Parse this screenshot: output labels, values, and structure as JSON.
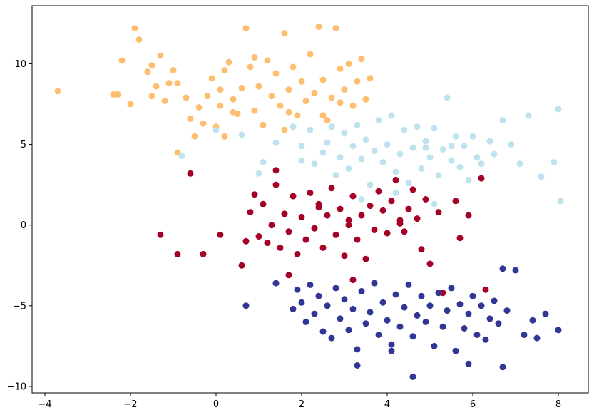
{
  "chart_data": {
    "type": "scatter",
    "title": "",
    "xlabel": "",
    "ylabel": "",
    "xlim": [
      -4.3,
      8.7
    ],
    "ylim": [
      -10.4,
      13.6
    ],
    "grid": false,
    "legend": "none",
    "x_ticks": [
      -4,
      -2,
      0,
      2,
      4,
      6,
      8
    ],
    "y_ticks": [
      -10,
      -5,
      0,
      5,
      10
    ],
    "series": [
      {
        "color": "#fdbf6f",
        "points": [
          [
            -3.7,
            8.3
          ],
          [
            -2.4,
            8.1
          ],
          [
            -2.3,
            8.1
          ],
          [
            -2.2,
            10.2
          ],
          [
            -2.0,
            7.5
          ],
          [
            -1.9,
            12.2
          ],
          [
            -1.8,
            11.5
          ],
          [
            -1.6,
            9.5
          ],
          [
            -1.5,
            8.0
          ],
          [
            -1.4,
            8.6
          ],
          [
            -1.3,
            10.5
          ],
          [
            -1.2,
            7.7
          ],
          [
            -1.0,
            9.6
          ],
          [
            -0.9,
            8.8
          ],
          [
            -0.7,
            7.9
          ],
          [
            -0.6,
            6.6
          ],
          [
            -0.5,
            5.5
          ],
          [
            -0.4,
            7.3
          ],
          [
            -0.3,
            6.3
          ],
          [
            -0.2,
            8.0
          ],
          [
            -0.1,
            9.1
          ],
          [
            0.0,
            6.1
          ],
          [
            0.1,
            7.4
          ],
          [
            0.2,
            9.6
          ],
          [
            0.3,
            10.1
          ],
          [
            0.4,
            7.8
          ],
          [
            0.5,
            6.9
          ],
          [
            0.6,
            8.5
          ],
          [
            0.7,
            12.2
          ],
          [
            0.8,
            9.8
          ],
          [
            0.9,
            7.1
          ],
          [
            1.0,
            8.6
          ],
          [
            1.1,
            6.2
          ],
          [
            1.2,
            10.2
          ],
          [
            1.3,
            8.0
          ],
          [
            1.4,
            9.4
          ],
          [
            1.5,
            7.4
          ],
          [
            1.6,
            11.9
          ],
          [
            1.7,
            8.4
          ],
          [
            1.8,
            9.8
          ],
          [
            1.9,
            6.8
          ],
          [
            2.0,
            8.9
          ],
          [
            2.1,
            7.7
          ],
          [
            2.2,
            10.6
          ],
          [
            2.3,
            8.2
          ],
          [
            2.4,
            12.3
          ],
          [
            2.5,
            9.0
          ],
          [
            2.6,
            6.5
          ],
          [
            2.7,
            7.9
          ],
          [
            2.8,
            12.2
          ],
          [
            2.9,
            9.7
          ],
          [
            3.0,
            8.4
          ],
          [
            3.1,
            10.0
          ],
          [
            3.2,
            7.4
          ],
          [
            3.3,
            8.9
          ],
          [
            3.4,
            10.3
          ],
          [
            3.5,
            7.8
          ],
          [
            3.6,
            9.1
          ],
          [
            0.2,
            5.5
          ],
          [
            -0.9,
            4.5
          ],
          [
            -1.5,
            9.9
          ],
          [
            0.4,
            7.0
          ],
          [
            1.6,
            5.9
          ],
          [
            2.5,
            6.8
          ],
          [
            -1.1,
            8.8
          ],
          [
            0.9,
            10.4
          ],
          [
            2.9,
            7.6
          ],
          [
            0.1,
            8.4
          ],
          [
            1.7,
            7.0
          ]
        ]
      },
      {
        "color": "#bfe3ee",
        "points": [
          [
            -0.8,
            4.3
          ],
          [
            0.0,
            5.9
          ],
          [
            0.6,
            5.6
          ],
          [
            1.0,
            3.2
          ],
          [
            1.4,
            5.1
          ],
          [
            1.8,
            6.1
          ],
          [
            2.0,
            4.9
          ],
          [
            2.2,
            5.9
          ],
          [
            2.3,
            3.8
          ],
          [
            2.5,
            4.5
          ],
          [
            2.6,
            5.1
          ],
          [
            2.7,
            6.1
          ],
          [
            2.8,
            3.1
          ],
          [
            2.9,
            4.2
          ],
          [
            3.0,
            5.7
          ],
          [
            3.1,
            3.5
          ],
          [
            3.2,
            4.9
          ],
          [
            3.3,
            6.2
          ],
          [
            3.4,
            4.1
          ],
          [
            3.5,
            5.3
          ],
          [
            3.6,
            2.5
          ],
          [
            3.7,
            4.6
          ],
          [
            3.8,
            6.5
          ],
          [
            3.9,
            3.9
          ],
          [
            4.0,
            5.0
          ],
          [
            4.1,
            6.8
          ],
          [
            4.2,
            3.3
          ],
          [
            4.3,
            4.4
          ],
          [
            4.4,
            5.9
          ],
          [
            4.5,
            2.6
          ],
          [
            4.6,
            4.8
          ],
          [
            4.7,
            6.1
          ],
          [
            4.8,
            3.5
          ],
          [
            4.9,
            5.2
          ],
          [
            5.0,
            4.2
          ],
          [
            5.1,
            6.0
          ],
          [
            5.2,
            3.1
          ],
          [
            5.3,
            4.7
          ],
          [
            5.4,
            7.9
          ],
          [
            5.5,
            4.0
          ],
          [
            5.6,
            5.5
          ],
          [
            5.7,
            3.6
          ],
          [
            5.8,
            4.9
          ],
          [
            5.9,
            2.8
          ],
          [
            6.0,
            5.5
          ],
          [
            6.1,
            4.2
          ],
          [
            6.2,
            3.8
          ],
          [
            6.4,
            5.2
          ],
          [
            6.5,
            4.4
          ],
          [
            6.7,
            6.5
          ],
          [
            6.9,
            5.0
          ],
          [
            7.1,
            3.8
          ],
          [
            7.3,
            6.8
          ],
          [
            7.6,
            3.0
          ],
          [
            7.9,
            3.9
          ],
          [
            8.0,
            7.2
          ],
          [
            8.05,
            1.5
          ],
          [
            4.2,
            2.0
          ],
          [
            5.1,
            1.3
          ],
          [
            3.4,
            1.6
          ],
          [
            1.1,
            3.9
          ],
          [
            2.0,
            4.0
          ],
          [
            4.9,
            4.8
          ],
          [
            5.5,
            4.9
          ]
        ]
      },
      {
        "color": "#a50026",
        "points": [
          [
            -1.3,
            -0.6
          ],
          [
            -0.9,
            -1.8
          ],
          [
            -0.3,
            -1.8
          ],
          [
            -0.6,
            3.2
          ],
          [
            0.1,
            -0.6
          ],
          [
            0.7,
            -1.0
          ],
          [
            0.6,
            -2.5
          ],
          [
            0.8,
            0.8
          ],
          [
            0.9,
            1.9
          ],
          [
            1.0,
            -0.7
          ],
          [
            1.1,
            1.3
          ],
          [
            1.2,
            -1.1
          ],
          [
            1.3,
            0.0
          ],
          [
            1.4,
            2.5
          ],
          [
            1.5,
            -1.4
          ],
          [
            1.6,
            0.7
          ],
          [
            1.7,
            -0.4
          ],
          [
            1.8,
            1.8
          ],
          [
            1.9,
            -1.8
          ],
          [
            2.0,
            0.5
          ],
          [
            2.1,
            -0.9
          ],
          [
            2.2,
            2.0
          ],
          [
            2.3,
            -0.2
          ],
          [
            2.4,
            1.3
          ],
          [
            2.5,
            -1.4
          ],
          [
            2.6,
            0.6
          ],
          [
            2.7,
            2.3
          ],
          [
            2.8,
            -0.6
          ],
          [
            2.9,
            1.0
          ],
          [
            3.0,
            -1.9
          ],
          [
            3.1,
            0.3
          ],
          [
            3.2,
            1.8
          ],
          [
            3.3,
            -0.9
          ],
          [
            3.4,
            0.6
          ],
          [
            3.5,
            -2.1
          ],
          [
            3.6,
            1.2
          ],
          [
            3.7,
            -0.3
          ],
          [
            3.8,
            2.1
          ],
          [
            3.9,
            0.9
          ],
          [
            4.0,
            -0.5
          ],
          [
            4.1,
            1.5
          ],
          [
            4.2,
            2.8
          ],
          [
            4.3,
            0.1
          ],
          [
            4.4,
            -0.4
          ],
          [
            4.5,
            1.0
          ],
          [
            4.6,
            2.2
          ],
          [
            4.7,
            0.4
          ],
          [
            4.8,
            -1.5
          ],
          [
            4.9,
            1.6
          ],
          [
            5.0,
            -2.4
          ],
          [
            5.2,
            0.8
          ],
          [
            5.3,
            -4.2
          ],
          [
            5.6,
            1.5
          ],
          [
            5.7,
            -0.8
          ],
          [
            5.9,
            0.6
          ],
          [
            6.2,
            2.9
          ],
          [
            6.3,
            -4.0
          ],
          [
            1.4,
            3.4
          ],
          [
            1.7,
            -3.1
          ],
          [
            3.2,
            -3.4
          ],
          [
            2.4,
            1.1
          ],
          [
            3.1,
            0.0
          ],
          [
            4.3,
            0.3
          ]
        ]
      },
      {
        "color": "#313695",
        "points": [
          [
            0.7,
            -5.0
          ],
          [
            1.4,
            -3.6
          ],
          [
            1.8,
            -5.2
          ],
          [
            1.9,
            -4.0
          ],
          [
            2.0,
            -4.8
          ],
          [
            2.1,
            -6.0
          ],
          [
            2.2,
            -3.7
          ],
          [
            2.3,
            -5.5
          ],
          [
            2.4,
            -4.4
          ],
          [
            2.5,
            -6.6
          ],
          [
            2.6,
            -5.0
          ],
          [
            2.7,
            -7.0
          ],
          [
            2.8,
            -3.9
          ],
          [
            2.9,
            -5.8
          ],
          [
            3.0,
            -4.6
          ],
          [
            3.1,
            -6.5
          ],
          [
            3.2,
            -5.2
          ],
          [
            3.3,
            -7.7
          ],
          [
            3.4,
            -4.1
          ],
          [
            3.5,
            -6.1
          ],
          [
            3.6,
            -5.4
          ],
          [
            3.7,
            -3.6
          ],
          [
            3.8,
            -6.8
          ],
          [
            3.9,
            -4.8
          ],
          [
            4.0,
            -5.9
          ],
          [
            4.1,
            -7.4
          ],
          [
            4.2,
            -4.3
          ],
          [
            4.3,
            -6.3
          ],
          [
            4.4,
            -5.1
          ],
          [
            4.5,
            -3.7
          ],
          [
            4.6,
            -6.9
          ],
          [
            4.7,
            -5.6
          ],
          [
            4.8,
            -4.4
          ],
          [
            4.9,
            -6.0
          ],
          [
            5.0,
            -5.0
          ],
          [
            5.1,
            -7.5
          ],
          [
            5.2,
            -4.2
          ],
          [
            5.3,
            -6.3
          ],
          [
            5.4,
            -5.3
          ],
          [
            5.5,
            -3.9
          ],
          [
            5.6,
            -7.8
          ],
          [
            5.7,
            -4.9
          ],
          [
            5.8,
            -6.4
          ],
          [
            5.9,
            -5.5
          ],
          [
            6.0,
            -4.4
          ],
          [
            6.1,
            -6.8
          ],
          [
            6.2,
            -5.0
          ],
          [
            6.3,
            -7.1
          ],
          [
            6.4,
            -5.8
          ],
          [
            6.5,
            -4.7
          ],
          [
            6.6,
            -6.1
          ],
          [
            6.7,
            -2.7
          ],
          [
            6.8,
            -5.3
          ],
          [
            7.0,
            -2.8
          ],
          [
            7.2,
            -6.8
          ],
          [
            7.4,
            -5.9
          ],
          [
            7.5,
            -7.0
          ],
          [
            7.7,
            -5.5
          ],
          [
            8.0,
            -6.5
          ],
          [
            4.6,
            -9.4
          ],
          [
            3.3,
            -8.7
          ],
          [
            5.9,
            -8.6
          ],
          [
            6.7,
            -8.8
          ],
          [
            4.1,
            -7.8
          ]
        ]
      }
    ]
  }
}
